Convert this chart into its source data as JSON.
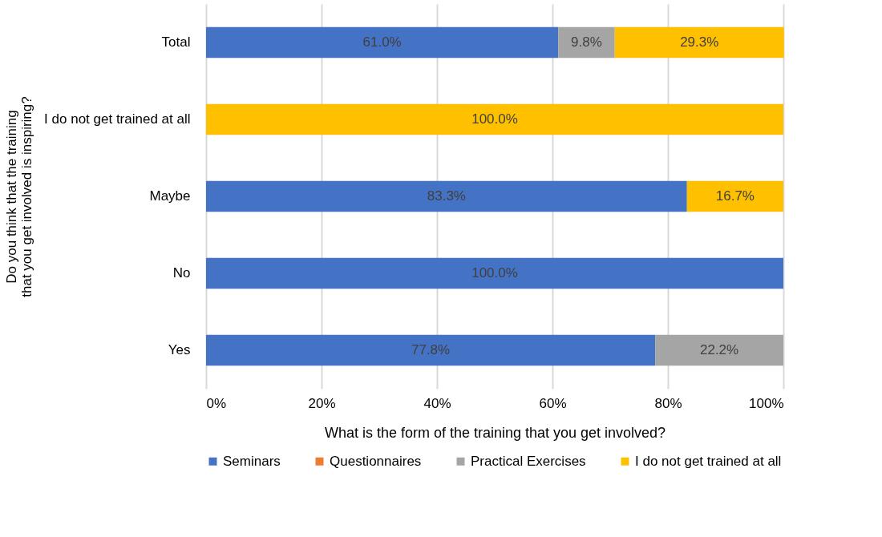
{
  "chart_data": {
    "type": "bar",
    "orientation": "horizontal",
    "stacked": true,
    "xlabel": "What is the form of the training that you get involved?",
    "ylabel": "Do you think that the training that you get involved is inspiring?",
    "categories": [
      "Total",
      "I do not get trained at all",
      "Maybe",
      "No",
      "Yes"
    ],
    "series": [
      {
        "name": "Seminars",
        "color": "#4472c4",
        "values": [
          61.0,
          null,
          83.3,
          100.0,
          77.8
        ],
        "value_labels": [
          "61.0%",
          null,
          "83.3%",
          "100.0%",
          "77.8%"
        ]
      },
      {
        "name": "Questionnaires",
        "color": "#ed7d31",
        "values": [
          null,
          null,
          null,
          null,
          null
        ],
        "value_labels": [
          null,
          null,
          null,
          null,
          null
        ]
      },
      {
        "name": "Practical Exercises",
        "color": "#a5a5a5",
        "values": [
          9.8,
          null,
          null,
          null,
          22.2
        ],
        "value_labels": [
          "9.8%",
          null,
          null,
          null,
          "22.2%"
        ]
      },
      {
        "name": "I do not get trained at all",
        "color": "#ffc000",
        "values": [
          29.3,
          100.0,
          16.7,
          null,
          null
        ],
        "value_labels": [
          "29.3%",
          "100.0%",
          "16.7%",
          null,
          null
        ]
      }
    ],
    "xlim": [
      0,
      100
    ],
    "xticks": [
      {
        "value": 0,
        "label": "0%"
      },
      {
        "value": 20,
        "label": "20%"
      },
      {
        "value": 40,
        "label": "40%"
      },
      {
        "value": 60,
        "label": "60%"
      },
      {
        "value": 80,
        "label": "80%"
      },
      {
        "value": 100,
        "label": "100%"
      }
    ],
    "grid": "x",
    "legend": "bottom"
  }
}
